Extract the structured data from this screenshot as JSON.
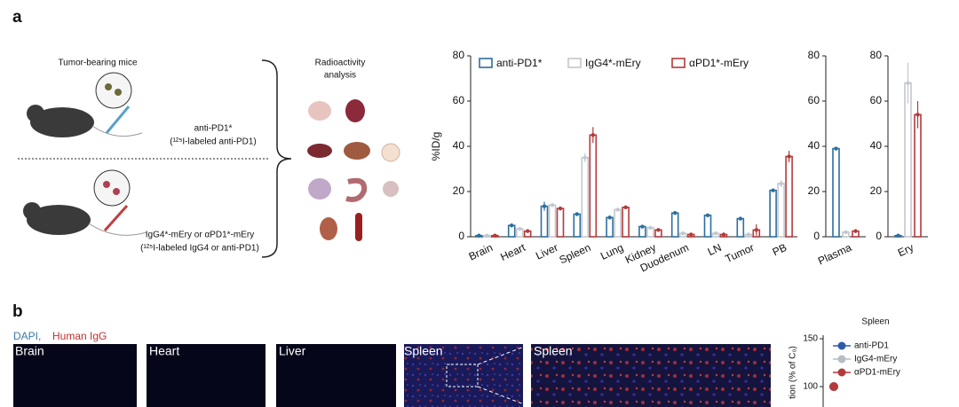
{
  "panel_a": "a",
  "panel_b": "b",
  "diagram": {
    "mice_title": "Tumor-bearing mice",
    "group1": "anti-PD1*",
    "group1_note": "(¹²⁵I-labeled anti-PD1)",
    "group2": "IgG4*-mEry or αPD1*-mEry",
    "group2_note": "(¹²⁵I-labeled IgG4 or anti-PD1)",
    "analysis_line1": "Radioactivity",
    "analysis_line2": "analysis"
  },
  "images": {
    "stain_dapi": "DAPI,",
    "stain_igg": "Human IgG",
    "panels": [
      "Brain",
      "Heart",
      "Liver",
      "Spleen",
      "Spleen"
    ]
  },
  "chart_data": [
    {
      "type": "bar",
      "ylabel": "%ID/g",
      "categories": [
        "Brain",
        "Heart",
        "Liver",
        "Spleen",
        "Lung",
        "Kidney",
        "Duodenum",
        "LN",
        "Tumor",
        "PB"
      ],
      "series": [
        {
          "name": "anti-PD1*",
          "color": "#2c6e9e",
          "values": [
            0.5,
            5,
            13.5,
            10,
            8.5,
            4.5,
            10.5,
            9.5,
            8,
            20.5
          ],
          "errors": [
            0.3,
            0.8,
            2,
            0.5,
            0.8,
            0.5,
            0.5,
            0.5,
            0.5,
            0.5
          ]
        },
        {
          "name": "IgG4*-mEry",
          "color": "#c3c7ce",
          "values": [
            0.5,
            3.5,
            14,
            35,
            12,
            4,
            1.5,
            1.5,
            1,
            23.5
          ],
          "errors": [
            0.2,
            0.5,
            0.8,
            2,
            0.8,
            0.5,
            0.4,
            0.4,
            0.3,
            1.5
          ]
        },
        {
          "name": "αPD1*-mEry",
          "color": "#b23a3a",
          "values": [
            0.5,
            2.5,
            12.5,
            45,
            13,
            3,
            1,
            1,
            3,
            35.5
          ],
          "errors": [
            0.2,
            0.5,
            0.8,
            3.5,
            0.8,
            0.4,
            0.3,
            0.3,
            2.5,
            2.5
          ]
        }
      ],
      "ylim": [
        0,
        80
      ],
      "yticks": [
        0,
        20,
        40,
        60,
        80
      ],
      "legend": "top"
    },
    {
      "type": "bar",
      "categories": [
        "Plasma"
      ],
      "series": [
        {
          "name": "anti-PD1*",
          "color": "#2c6e9e",
          "values": [
            39
          ],
          "errors": [
            0.8
          ]
        },
        {
          "name": "IgG4*-mEry",
          "color": "#c3c7ce",
          "values": [
            2
          ],
          "errors": [
            0.3
          ]
        },
        {
          "name": "αPD1*-mEry",
          "color": "#b23a3a",
          "values": [
            2.5
          ],
          "errors": [
            0.4
          ]
        }
      ],
      "ylim": [
        0,
        80
      ],
      "yticks": [
        0,
        20,
        40,
        60,
        80
      ]
    },
    {
      "type": "bar",
      "categories": [
        "Ery"
      ],
      "series": [
        {
          "name": "anti-PD1*",
          "color": "#2c6e9e",
          "values": [
            0.5
          ],
          "errors": [
            0.2
          ]
        },
        {
          "name": "IgG4*-mEry",
          "color": "#c3c7ce",
          "values": [
            68
          ],
          "errors": [
            9
          ]
        },
        {
          "name": "αPD1*-mEry",
          "color": "#b23a3a",
          "values": [
            54
          ],
          "errors": [
            6
          ]
        }
      ],
      "ylim": [
        0,
        80
      ],
      "yticks": [
        0,
        20,
        40,
        60,
        80
      ]
    },
    {
      "type": "line",
      "title": "Spleen",
      "ylabel": "tion (% of C₀)",
      "x": [
        0
      ],
      "xlim": [
        0,
        10
      ],
      "series": [
        {
          "name": "anti-PD1",
          "color": "#2f5aa8",
          "values": [
            100
          ]
        },
        {
          "name": "IgG4-mEry",
          "color": "#b8bcc4",
          "values": [
            100
          ]
        },
        {
          "name": "αPD1-mEry",
          "color": "#b23a3a",
          "values": [
            100
          ]
        }
      ],
      "ylim": [
        0,
        150
      ],
      "yticks": [
        100,
        150
      ],
      "legend": "top-left"
    }
  ]
}
